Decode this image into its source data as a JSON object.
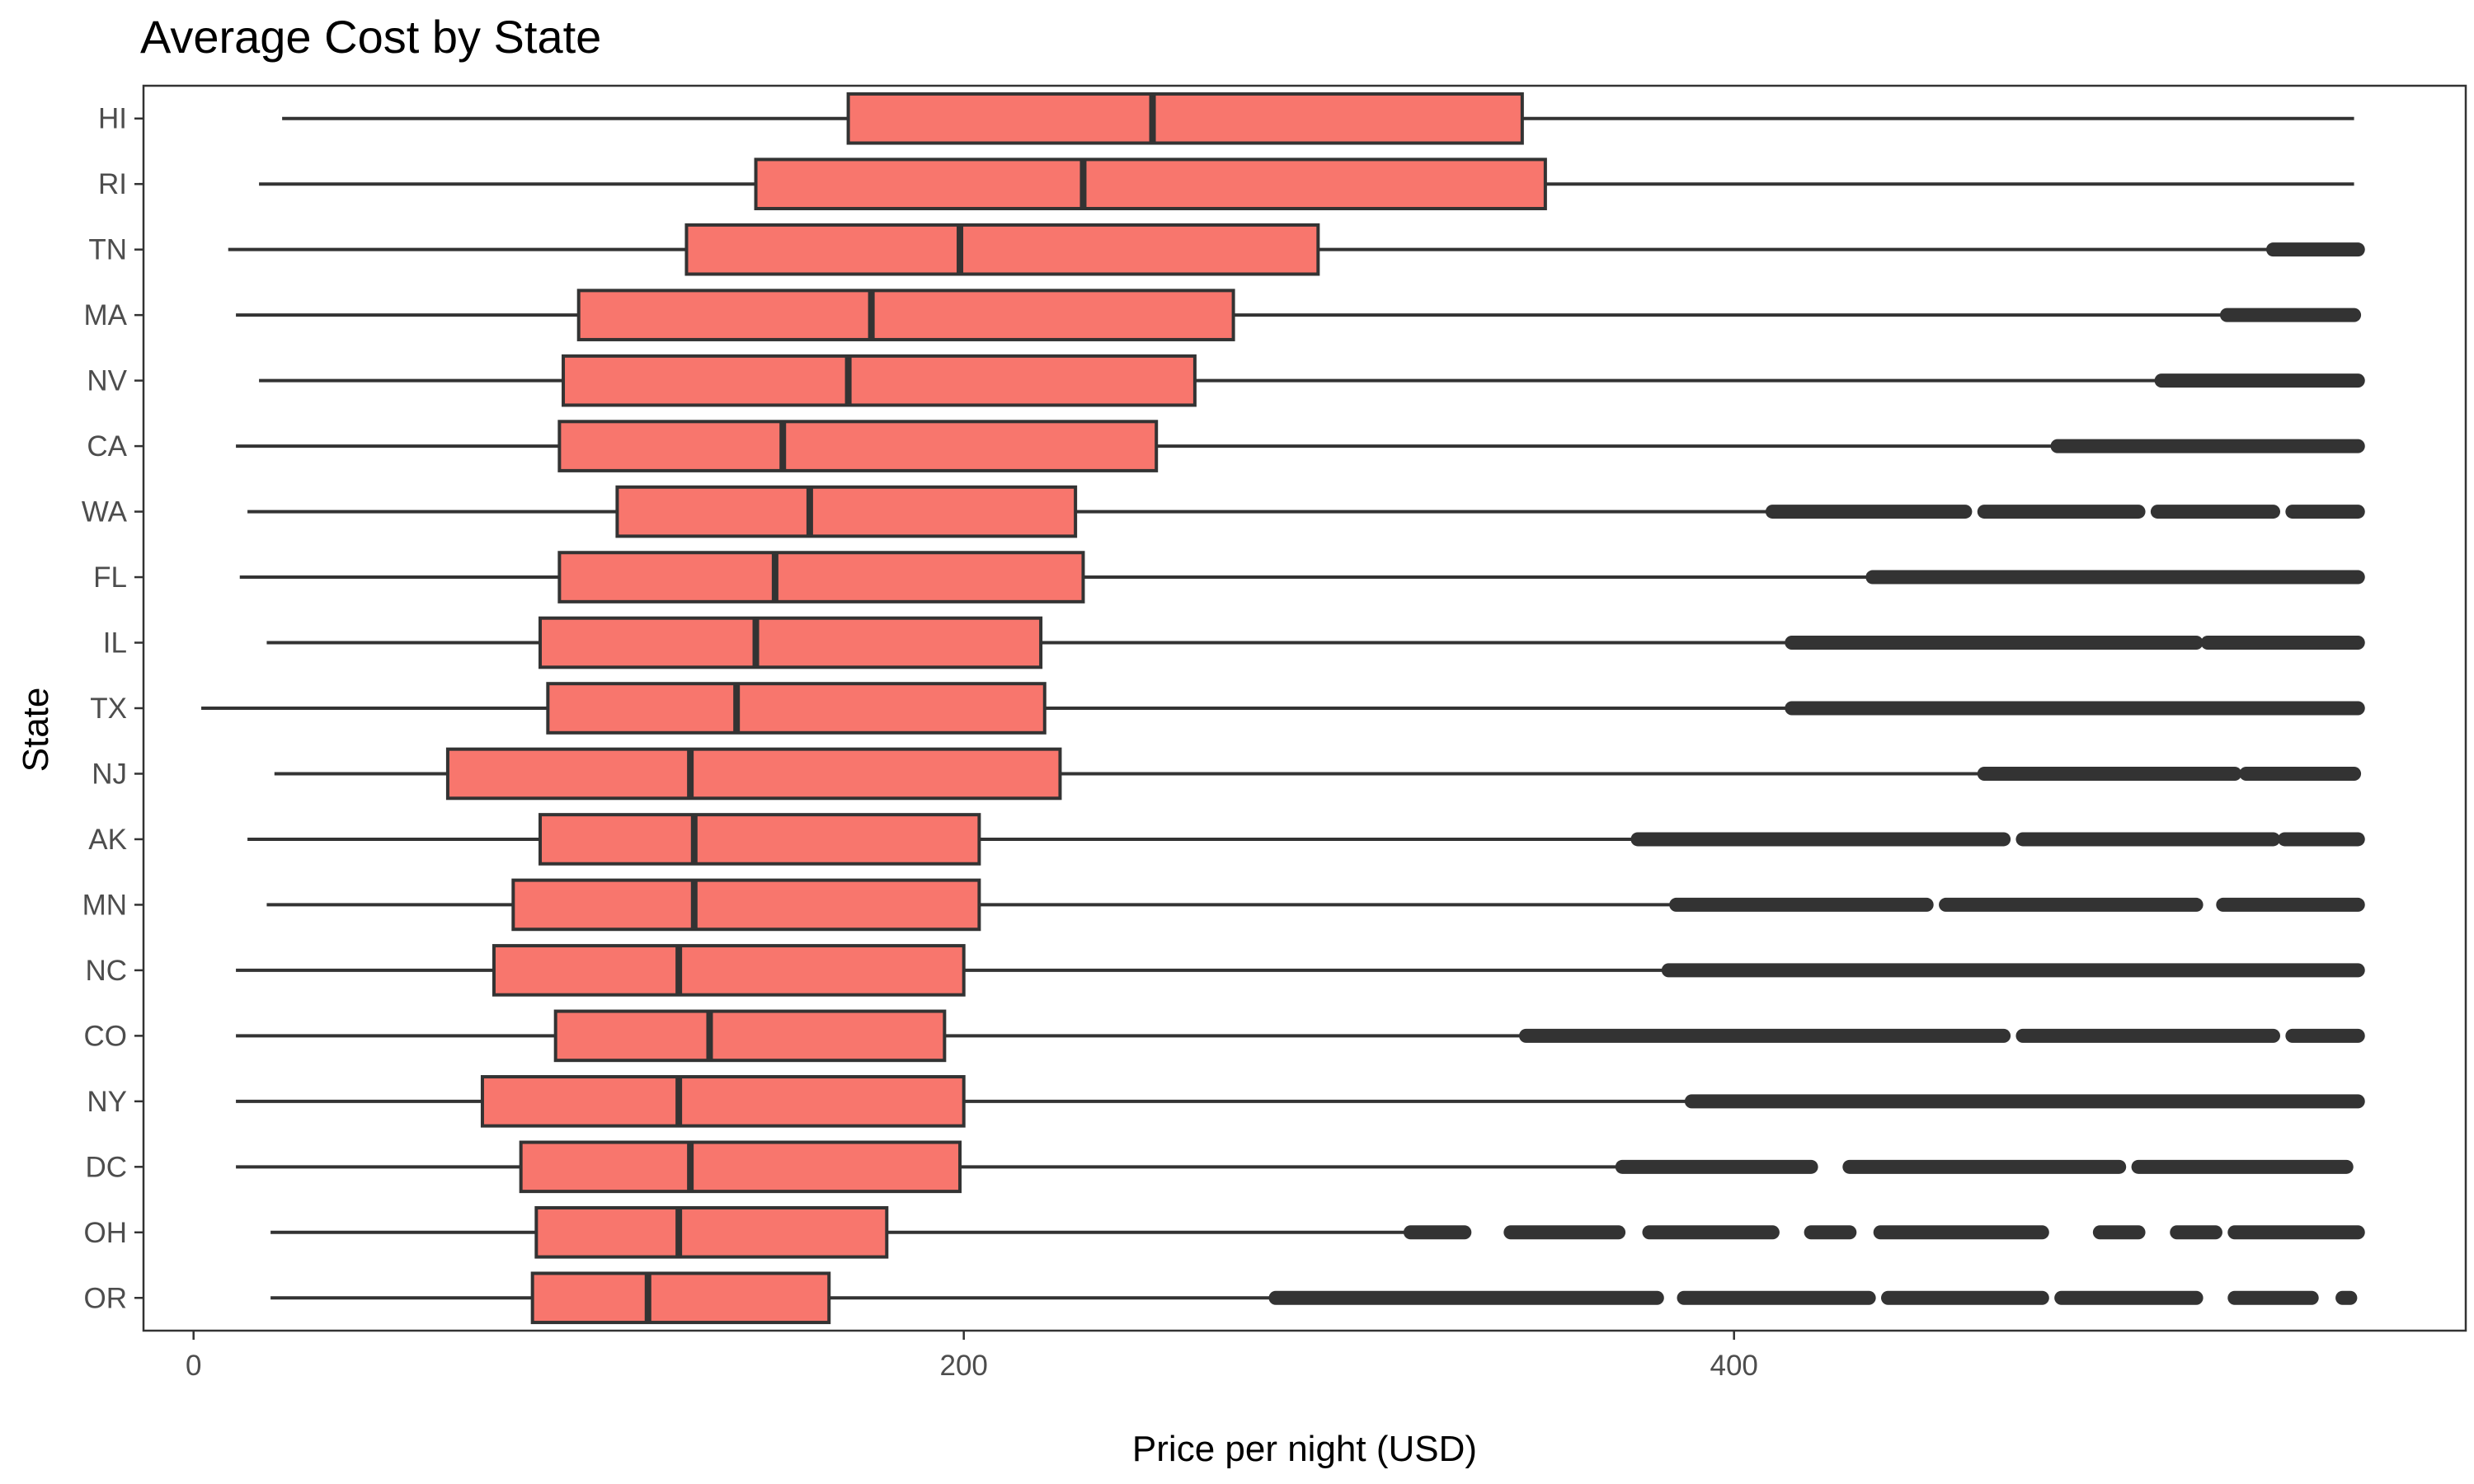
{
  "chart_data": {
    "type": "boxplot",
    "title": "Average Cost by State",
    "xlabel": "Price per night (USD)",
    "ylabel": "State",
    "xlim": [
      -13,
      590
    ],
    "xticks": [
      0,
      200,
      400
    ],
    "orientation": "horizontal",
    "grid": false,
    "legend": "none",
    "box_fill": "#F8766D",
    "box_stroke": "#333333",
    "point_color": "#333333",
    "categories": [
      "HI",
      "RI",
      "TN",
      "MA",
      "NV",
      "CA",
      "WA",
      "FL",
      "IL",
      "TX",
      "NJ",
      "AK",
      "MN",
      "NC",
      "CO",
      "NY",
      "DC",
      "OH",
      "OR"
    ],
    "boxes": [
      {
        "state": "HI",
        "whisker_low": 23,
        "q1": 170,
        "median": 249,
        "q3": 345,
        "whisker_high": 561,
        "outliers": []
      },
      {
        "state": "RI",
        "whisker_low": 17,
        "q1": 146,
        "median": 231,
        "q3": 351,
        "whisker_high": 561,
        "outliers": []
      },
      {
        "state": "TN",
        "whisker_low": 9,
        "q1": 128,
        "median": 199,
        "q3": 292,
        "whisker_high": 540,
        "outliers": [
          [
            540,
            562
          ]
        ]
      },
      {
        "state": "MA",
        "whisker_low": 11,
        "q1": 100,
        "median": 176,
        "q3": 270,
        "whisker_high": 528,
        "outliers": [
          [
            528,
            561
          ]
        ]
      },
      {
        "state": "NV",
        "whisker_low": 17,
        "q1": 96,
        "median": 170,
        "q3": 260,
        "whisker_high": 511,
        "outliers": [
          [
            511,
            562
          ]
        ]
      },
      {
        "state": "CA",
        "whisker_low": 11,
        "q1": 95,
        "median": 153,
        "q3": 250,
        "whisker_high": 484,
        "outliers": [
          [
            484,
            562
          ]
        ]
      },
      {
        "state": "WA",
        "whisker_low": 14,
        "q1": 110,
        "median": 160,
        "q3": 229,
        "whisker_high": 410,
        "outliers": [
          [
            410,
            460
          ],
          [
            465,
            505
          ],
          [
            510,
            540
          ],
          [
            545,
            562
          ]
        ]
      },
      {
        "state": "FL",
        "whisker_low": 12,
        "q1": 95,
        "median": 151,
        "q3": 231,
        "whisker_high": 436,
        "outliers": [
          [
            436,
            562
          ]
        ]
      },
      {
        "state": "IL",
        "whisker_low": 19,
        "q1": 90,
        "median": 146,
        "q3": 220,
        "whisker_high": 415,
        "outliers": [
          [
            415,
            520
          ],
          [
            523,
            562
          ]
        ]
      },
      {
        "state": "TX",
        "whisker_low": 2,
        "q1": 92,
        "median": 141,
        "q3": 221,
        "whisker_high": 415,
        "outliers": [
          [
            415,
            562
          ]
        ]
      },
      {
        "state": "NJ",
        "whisker_low": 21,
        "q1": 66,
        "median": 129,
        "q3": 225,
        "whisker_high": 465,
        "outliers": [
          [
            465,
            530
          ],
          [
            533,
            561
          ]
        ]
      },
      {
        "state": "AK",
        "whisker_low": 14,
        "q1": 90,
        "median": 130,
        "q3": 204,
        "whisker_high": 375,
        "outliers": [
          [
            375,
            470
          ],
          [
            475,
            540
          ],
          [
            543,
            562
          ]
        ]
      },
      {
        "state": "MN",
        "whisker_low": 19,
        "q1": 83,
        "median": 130,
        "q3": 204,
        "whisker_high": 384,
        "outliers": [
          [
            385,
            450
          ],
          [
            455,
            520
          ],
          [
            527,
            562
          ]
        ]
      },
      {
        "state": "NC",
        "whisker_low": 11,
        "q1": 78,
        "median": 126,
        "q3": 200,
        "whisker_high": 383,
        "outliers": [
          [
            383,
            562
          ]
        ]
      },
      {
        "state": "CO",
        "whisker_low": 11,
        "q1": 94,
        "median": 134,
        "q3": 195,
        "whisker_high": 346,
        "outliers": [
          [
            346,
            470
          ],
          [
            475,
            540
          ],
          [
            545,
            562
          ]
        ]
      },
      {
        "state": "NY",
        "whisker_low": 11,
        "q1": 75,
        "median": 126,
        "q3": 200,
        "whisker_high": 389,
        "outliers": [
          [
            389,
            562
          ]
        ]
      },
      {
        "state": "DC",
        "whisker_low": 11,
        "q1": 85,
        "median": 129,
        "q3": 199,
        "whisker_high": 371,
        "outliers": [
          [
            371,
            420
          ],
          [
            430,
            500
          ],
          [
            505,
            559
          ]
        ]
      },
      {
        "state": "OH",
        "whisker_low": 20,
        "q1": 89,
        "median": 126,
        "q3": 180,
        "whisker_high": 316,
        "outliers": [
          [
            316,
            330
          ],
          [
            342,
            370
          ],
          [
            378,
            410
          ],
          [
            420,
            430
          ],
          [
            438,
            480
          ],
          [
            495,
            505
          ],
          [
            515,
            525
          ],
          [
            530,
            562
          ]
        ]
      },
      {
        "state": "OR",
        "whisker_low": 20,
        "q1": 88,
        "median": 118,
        "q3": 165,
        "whisker_high": 280,
        "outliers": [
          [
            281,
            380
          ],
          [
            387,
            435
          ],
          [
            440,
            480
          ],
          [
            485,
            520
          ],
          [
            530,
            550
          ],
          [
            558,
            560
          ]
        ]
      }
    ]
  }
}
